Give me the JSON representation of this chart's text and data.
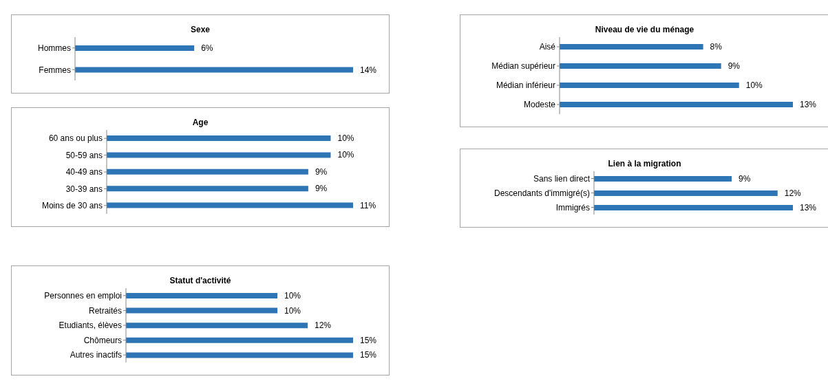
{
  "chart_data": [
    {
      "type": "bar",
      "orientation": "horizontal",
      "title": "Sexe",
      "categories": [
        "Hommes",
        "Femmes"
      ],
      "series": [
        {
          "color": "#2e75b6",
          "values": [
            6,
            14
          ],
          "value_labels": [
            "6%",
            "14%"
          ]
        }
      ]
    },
    {
      "type": "bar",
      "orientation": "horizontal",
      "title": "Age",
      "categories": [
        "60 ans ou plus",
        "50-59 ans",
        "40-49 ans",
        "30-39 ans",
        "Moins de 30 ans"
      ],
      "series": [
        {
          "color": "#2e75b6",
          "values": [
            10,
            10,
            9,
            9,
            11
          ],
          "value_labels": [
            "10%",
            "10%",
            "9%",
            "9%",
            "11%"
          ]
        }
      ]
    },
    {
      "type": "bar",
      "orientation": "horizontal",
      "title": "Statut d'activité",
      "categories": [
        "Personnes en emploi",
        "Retraités",
        "Etudiants, élèves",
        "Chômeurs",
        "Autres inactifs"
      ],
      "series": [
        {
          "color": "#2e75b6",
          "values": [
            10,
            10,
            12,
            15,
            15
          ],
          "value_labels": [
            "10%",
            "10%",
            "12%",
            "15%",
            "15%"
          ]
        }
      ]
    },
    {
      "type": "bar",
      "orientation": "horizontal",
      "title": "Niveau de vie du ménage",
      "categories": [
        "Aisé",
        "Médian supérieur",
        "Médian inférieur",
        "Modeste"
      ],
      "series": [
        {
          "color": "#2e75b6",
          "values": [
            8,
            9,
            10,
            13
          ],
          "value_labels": [
            "8%",
            "9%",
            "10%",
            "13%"
          ]
        }
      ]
    },
    {
      "type": "bar",
      "orientation": "horizontal",
      "title": "Lien à la migration",
      "categories": [
        "Sans lien direct",
        "Descendants d'immigré(s)",
        "Immigrés"
      ],
      "series": [
        {
          "color": "#2e75b6",
          "values": [
            9,
            12,
            13
          ],
          "value_labels": [
            "9%",
            "12%",
            "13%"
          ]
        }
      ]
    }
  ]
}
